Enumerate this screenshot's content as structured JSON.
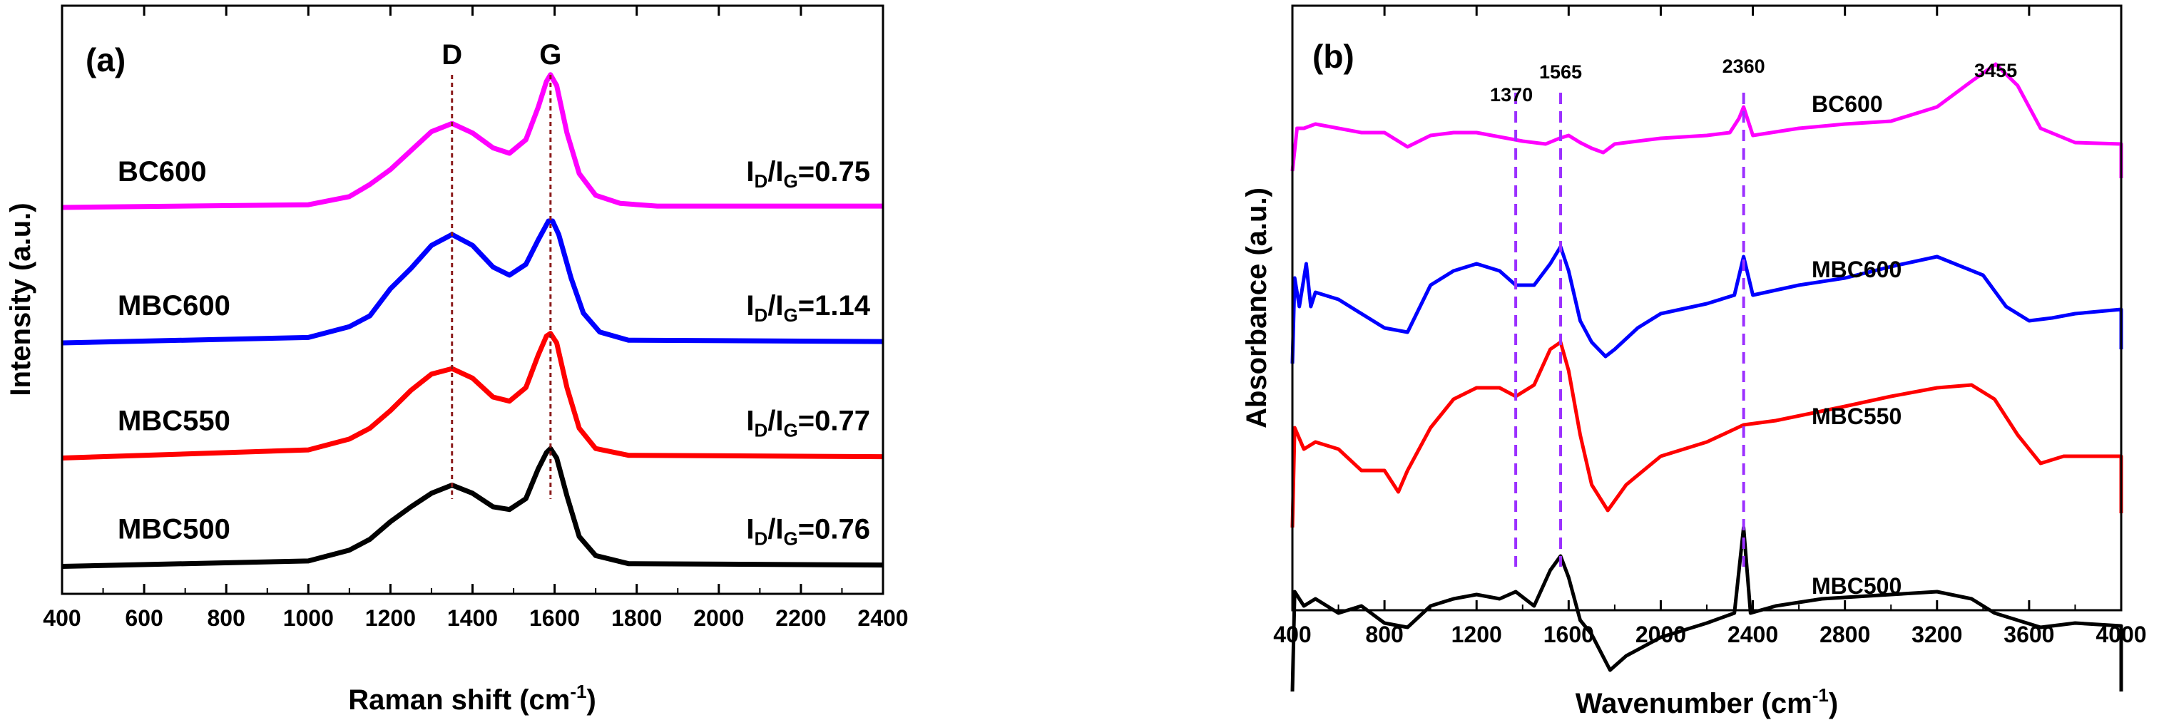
{
  "chart_data": [
    {
      "panel": "(a)",
      "type": "line",
      "title": "",
      "xlabel_main": "Raman shift (cm",
      "xlabel_sup": "-1",
      "xlabel_end": ")",
      "ylabel": "Intensity (a.u.)",
      "xlim": [
        400,
        2400
      ],
      "xticks": [
        400,
        600,
        800,
        1000,
        1200,
        1400,
        1600,
        1800,
        2000,
        2200,
        2400
      ],
      "y_ticks_shown": false,
      "peaks": [
        {
          "label": "D",
          "x": 1350,
          "color": "#8b1a1a"
        },
        {
          "label": "G",
          "x": 1590,
          "color": "#8b1a1a"
        }
      ],
      "series": [
        {
          "name": "BC600",
          "color": "#ff00ff",
          "offset": 2.1,
          "ratio": "0.75",
          "points": [
            [
              400,
              0
            ],
            [
              1000,
              0.02
            ],
            [
              1100,
              0.08
            ],
            [
              1150,
              0.17
            ],
            [
              1200,
              0.28
            ],
            [
              1250,
              0.42
            ],
            [
              1300,
              0.56
            ],
            [
              1350,
              0.62
            ],
            [
              1400,
              0.55
            ],
            [
              1450,
              0.44
            ],
            [
              1490,
              0.4
            ],
            [
              1530,
              0.5
            ],
            [
              1560,
              0.74
            ],
            [
              1580,
              0.93
            ],
            [
              1590,
              0.98
            ],
            [
              1605,
              0.9
            ],
            [
              1630,
              0.55
            ],
            [
              1660,
              0.25
            ],
            [
              1700,
              0.09
            ],
            [
              1760,
              0.03
            ],
            [
              1850,
              0.01
            ],
            [
              2400,
              0.01
            ]
          ]
        },
        {
          "name": "MBC600",
          "color": "#0000ff",
          "offset": 1.1,
          "ratio": "1.14",
          "points": [
            [
              400,
              0
            ],
            [
              1000,
              0.04
            ],
            [
              1100,
              0.12
            ],
            [
              1150,
              0.2
            ],
            [
              1200,
              0.4
            ],
            [
              1250,
              0.55
            ],
            [
              1300,
              0.72
            ],
            [
              1350,
              0.8
            ],
            [
              1400,
              0.72
            ],
            [
              1450,
              0.56
            ],
            [
              1490,
              0.5
            ],
            [
              1530,
              0.58
            ],
            [
              1560,
              0.76
            ],
            [
              1585,
              0.9
            ],
            [
              1595,
              0.9
            ],
            [
              1610,
              0.8
            ],
            [
              1640,
              0.48
            ],
            [
              1670,
              0.22
            ],
            [
              1710,
              0.08
            ],
            [
              1780,
              0.02
            ],
            [
              2400,
              0.01
            ]
          ]
        },
        {
          "name": "MBC550",
          "color": "#ff0000",
          "offset": 0.25,
          "ratio": "0.77",
          "points": [
            [
              400,
              0
            ],
            [
              1000,
              0.06
            ],
            [
              1100,
              0.14
            ],
            [
              1150,
              0.22
            ],
            [
              1200,
              0.35
            ],
            [
              1250,
              0.5
            ],
            [
              1300,
              0.62
            ],
            [
              1350,
              0.66
            ],
            [
              1400,
              0.59
            ],
            [
              1450,
              0.45
            ],
            [
              1490,
              0.42
            ],
            [
              1530,
              0.52
            ],
            [
              1560,
              0.76
            ],
            [
              1580,
              0.9
            ],
            [
              1590,
              0.92
            ],
            [
              1605,
              0.85
            ],
            [
              1630,
              0.52
            ],
            [
              1660,
              0.22
            ],
            [
              1700,
              0.07
            ],
            [
              1780,
              0.02
            ],
            [
              2400,
              0.01
            ]
          ]
        },
        {
          "name": "MBC500",
          "color": "#000000",
          "offset": -0.55,
          "ratio": "0.76",
          "points": [
            [
              400,
              0
            ],
            [
              1000,
              0.04
            ],
            [
              1100,
              0.12
            ],
            [
              1150,
              0.2
            ],
            [
              1200,
              0.33
            ],
            [
              1250,
              0.44
            ],
            [
              1300,
              0.54
            ],
            [
              1350,
              0.6
            ],
            [
              1400,
              0.54
            ],
            [
              1450,
              0.44
            ],
            [
              1490,
              0.42
            ],
            [
              1530,
              0.5
            ],
            [
              1560,
              0.72
            ],
            [
              1580,
              0.84
            ],
            [
              1590,
              0.87
            ],
            [
              1605,
              0.8
            ],
            [
              1630,
              0.52
            ],
            [
              1660,
              0.22
            ],
            [
              1700,
              0.08
            ],
            [
              1780,
              0.02
            ],
            [
              2400,
              0.01
            ]
          ]
        }
      ]
    },
    {
      "panel": "(b)",
      "type": "line",
      "title": "",
      "xlabel_main": "Wavenumber (cm",
      "xlabel_sup": "-1",
      "xlabel_end": ")",
      "ylabel": "Absorbance (a.u.)",
      "xlim": [
        400,
        4000
      ],
      "xticks": [
        400,
        800,
        1200,
        1600,
        2000,
        2400,
        2800,
        3200,
        3600,
        4000
      ],
      "y_ticks_shown": false,
      "peaks": [
        {
          "label": "1370",
          "x": 1370,
          "color": "#9b30ff"
        },
        {
          "label": "1565",
          "x": 1565,
          "color": "#9b30ff"
        },
        {
          "label": "2360",
          "x": 2360,
          "color": "#9b30ff"
        }
      ],
      "annotation": {
        "label": "3455",
        "x": 3455
      },
      "series": [
        {
          "name": "BC600",
          "color": "#ff00ff",
          "offset": 2.35,
          "points": [
            [
              400,
              -0.25
            ],
            [
              420,
              0.05
            ],
            [
              450,
              0.05
            ],
            [
              500,
              0.08
            ],
            [
              600,
              0.05
            ],
            [
              700,
              0.02
            ],
            [
              800,
              0.02
            ],
            [
              900,
              -0.08
            ],
            [
              1000,
              0
            ],
            [
              1100,
              0.02
            ],
            [
              1200,
              0.02
            ],
            [
              1300,
              -0.01
            ],
            [
              1400,
              -0.04
            ],
            [
              1500,
              -0.06
            ],
            [
              1560,
              -0.02
            ],
            [
              1600,
              0.0
            ],
            [
              1650,
              -0.05
            ],
            [
              1700,
              -0.09
            ],
            [
              1750,
              -0.12
            ],
            [
              1800,
              -0.06
            ],
            [
              2000,
              -0.02
            ],
            [
              2200,
              0.0
            ],
            [
              2300,
              0.02
            ],
            [
              2340,
              0.12
            ],
            [
              2360,
              0.2
            ],
            [
              2380,
              0.1
            ],
            [
              2400,
              0.0
            ],
            [
              2600,
              0.05
            ],
            [
              2800,
              0.08
            ],
            [
              3000,
              0.1
            ],
            [
              3200,
              0.2
            ],
            [
              3350,
              0.38
            ],
            [
              3455,
              0.5
            ],
            [
              3550,
              0.35
            ],
            [
              3650,
              0.05
            ],
            [
              3800,
              -0.05
            ],
            [
              4000,
              -0.06
            ],
            [
              4000,
              -0.3
            ]
          ]
        },
        {
          "name": "MBC600",
          "color": "#0000ff",
          "offset": 1.05,
          "points": [
            [
              400,
              -0.3
            ],
            [
              410,
              0.3
            ],
            [
              430,
              0.1
            ],
            [
              460,
              0.4
            ],
            [
              480,
              0.1
            ],
            [
              500,
              0.2
            ],
            [
              600,
              0.15
            ],
            [
              700,
              0.05
            ],
            [
              800,
              -0.05
            ],
            [
              900,
              -0.08
            ],
            [
              1000,
              0.25
            ],
            [
              1100,
              0.35
            ],
            [
              1200,
              0.4
            ],
            [
              1300,
              0.35
            ],
            [
              1370,
              0.25
            ],
            [
              1450,
              0.25
            ],
            [
              1520,
              0.4
            ],
            [
              1565,
              0.52
            ],
            [
              1600,
              0.35
            ],
            [
              1650,
              0.0
            ],
            [
              1700,
              -0.15
            ],
            [
              1760,
              -0.25
            ],
            [
              1800,
              -0.2
            ],
            [
              1900,
              -0.05
            ],
            [
              2000,
              0.05
            ],
            [
              2200,
              0.12
            ],
            [
              2320,
              0.18
            ],
            [
              2360,
              0.45
            ],
            [
              2400,
              0.18
            ],
            [
              2600,
              0.25
            ],
            [
              2800,
              0.3
            ],
            [
              3000,
              0.38
            ],
            [
              3200,
              0.45
            ],
            [
              3400,
              0.32
            ],
            [
              3500,
              0.1
            ],
            [
              3600,
              0.0
            ],
            [
              3700,
              0.02
            ],
            [
              3800,
              0.05
            ],
            [
              4000,
              0.08
            ],
            [
              4000,
              -0.2
            ]
          ]
        },
        {
          "name": "MBC550",
          "color": "#ff0000",
          "offset": 0.1,
          "points": [
            [
              400,
              -0.5
            ],
            [
              410,
              0.2
            ],
            [
              450,
              0.05
            ],
            [
              500,
              0.1
            ],
            [
              600,
              0.05
            ],
            [
              700,
              -0.1
            ],
            [
              800,
              -0.1
            ],
            [
              860,
              -0.25
            ],
            [
              900,
              -0.1
            ],
            [
              1000,
              0.2
            ],
            [
              1100,
              0.4
            ],
            [
              1200,
              0.48
            ],
            [
              1300,
              0.48
            ],
            [
              1370,
              0.42
            ],
            [
              1450,
              0.5
            ],
            [
              1520,
              0.75
            ],
            [
              1565,
              0.8
            ],
            [
              1600,
              0.6
            ],
            [
              1650,
              0.15
            ],
            [
              1700,
              -0.2
            ],
            [
              1770,
              -0.38
            ],
            [
              1850,
              -0.2
            ],
            [
              2000,
              0.0
            ],
            [
              2200,
              0.1
            ],
            [
              2360,
              0.22
            ],
            [
              2500,
              0.25
            ],
            [
              2800,
              0.35
            ],
            [
              3000,
              0.42
            ],
            [
              3200,
              0.48
            ],
            [
              3350,
              0.5
            ],
            [
              3450,
              0.4
            ],
            [
              3550,
              0.15
            ],
            [
              3650,
              -0.05
            ],
            [
              3750,
              0.0
            ],
            [
              4000,
              0.0
            ],
            [
              4000,
              -0.4
            ]
          ]
        },
        {
          "name": "MBC500",
          "color": "#000000",
          "offset": -0.95,
          "points": [
            [
              400,
              -0.6
            ],
            [
              410,
              0.1
            ],
            [
              450,
              0.0
            ],
            [
              500,
              0.05
            ],
            [
              600,
              -0.05
            ],
            [
              700,
              0.0
            ],
            [
              800,
              -0.12
            ],
            [
              900,
              -0.15
            ],
            [
              1000,
              0.0
            ],
            [
              1100,
              0.05
            ],
            [
              1200,
              0.08
            ],
            [
              1300,
              0.05
            ],
            [
              1370,
              0.1
            ],
            [
              1450,
              0.0
            ],
            [
              1520,
              0.25
            ],
            [
              1565,
              0.35
            ],
            [
              1600,
              0.2
            ],
            [
              1650,
              -0.1
            ],
            [
              1700,
              -0.2
            ],
            [
              1780,
              -0.45
            ],
            [
              1850,
              -0.35
            ],
            [
              2000,
              -0.22
            ],
            [
              2200,
              -0.12
            ],
            [
              2320,
              -0.05
            ],
            [
              2360,
              0.55
            ],
            [
              2390,
              -0.05
            ],
            [
              2500,
              0.0
            ],
            [
              2700,
              0.05
            ],
            [
              3000,
              0.08
            ],
            [
              3200,
              0.1
            ],
            [
              3350,
              0.05
            ],
            [
              3450,
              -0.05
            ],
            [
              3550,
              -0.1
            ],
            [
              3650,
              -0.15
            ],
            [
              3800,
              -0.12
            ],
            [
              4000,
              -0.14
            ],
            [
              4000,
              -0.6
            ]
          ]
        }
      ]
    }
  ]
}
